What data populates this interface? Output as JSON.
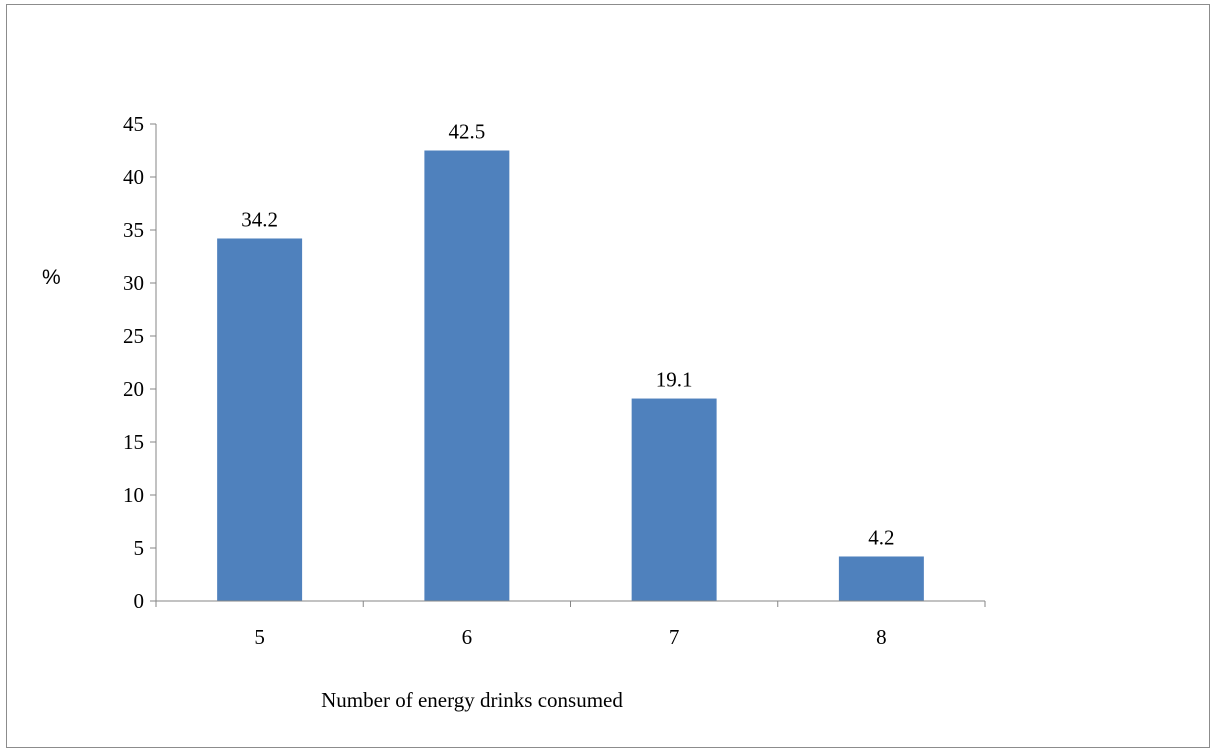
{
  "chart_data": {
    "type": "bar",
    "categories": [
      "5",
      "6",
      "7",
      "8"
    ],
    "values": [
      34.2,
      42.5,
      19.1,
      4.2
    ],
    "data_labels": [
      "34.2",
      "42.5",
      "19.1",
      "4.2"
    ],
    "xlabel": "Number of energy drinks consumed",
    "ylabel": "%",
    "ylim": [
      0,
      45
    ],
    "yticks": [
      "0",
      "5",
      "10",
      "15",
      "20",
      "25",
      "30",
      "35",
      "40",
      "45"
    ],
    "grid": false,
    "legend": "none",
    "colors": {
      "bar": "#4f81bd",
      "axis": "#868686",
      "frame": "#8c8c8c"
    }
  }
}
